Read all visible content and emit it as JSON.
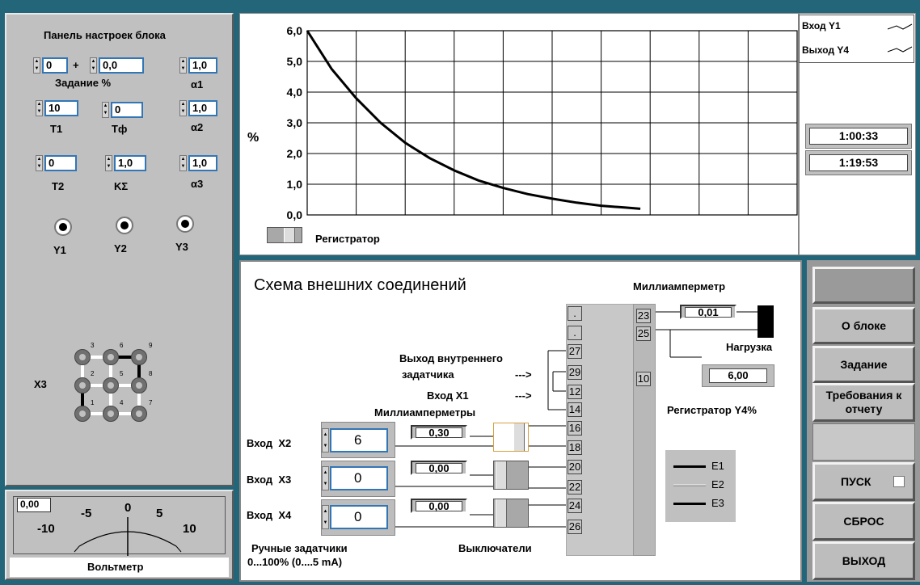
{
  "settings": {
    "title": "Панель настроек блока",
    "zadanie_a": "0",
    "plus": "+",
    "zadanie_b": "0,0",
    "zadanie_label": "Задание %",
    "alpha1_value": "1,0",
    "alpha1_label": "α1",
    "t1_value": "10",
    "t1_label": "T1",
    "tf_value": "0",
    "tf_label": "Tф",
    "alpha2_value": "1,0",
    "alpha2_label": "α2",
    "t2_value": "0",
    "t2_label": "T2",
    "ksigma_value": "1,0",
    "ksigma_label": "KΣ",
    "alpha3_value": "1,0",
    "alpha3_label": "α3",
    "radios": [
      "Y1",
      "Y2",
      "Y3"
    ],
    "x3_label": "X3",
    "node_numbers": [
      "3",
      "6",
      "9",
      "2",
      "5",
      "8",
      "1",
      "4",
      "7"
    ]
  },
  "voltmeter": {
    "value": "0,00",
    "title": "Вольтметр",
    "scale": [
      "-10",
      "-5",
      "0",
      "5",
      "10"
    ]
  },
  "chart_data": {
    "type": "line",
    "ylabel": "%",
    "yticks": [
      "6,0",
      "5,0",
      "4,0",
      "3,0",
      "2,0",
      "1,0",
      "0,0"
    ],
    "ylim": [
      0,
      6
    ],
    "xlim": [
      0,
      10
    ],
    "grid": true,
    "series": [
      {
        "values": [
          [
            0,
            6.0
          ],
          [
            0.5,
            4.75
          ],
          [
            1,
            3.8
          ],
          [
            1.5,
            3.0
          ],
          [
            2,
            2.35
          ],
          [
            2.5,
            1.85
          ],
          [
            3,
            1.45
          ],
          [
            3.5,
            1.12
          ],
          [
            4,
            0.88
          ],
          [
            4.5,
            0.68
          ],
          [
            5,
            0.53
          ],
          [
            5.5,
            0.4
          ],
          [
            6,
            0.3
          ],
          [
            6.5,
            0.24
          ],
          [
            6.8,
            0.2
          ]
        ]
      }
    ]
  },
  "registrator_label": "Регистратор",
  "legend": {
    "items": [
      "Вход Y1",
      "Выход Y4"
    ]
  },
  "times": [
    "1:00:33",
    "1:19:53"
  ],
  "scheme": {
    "title": "Схема внешних соединений",
    "milliammeter_label": "Миллиамперметр",
    "milliammeter_value": "0,01",
    "load_label": "Нагрузка",
    "reg_value": "6,00",
    "reg_label": "Регистратор Y4%",
    "inner_out_1": "Выход внутреннего",
    "inner_out_2": "задатчика",
    "arrow": "--->",
    "input_x1": "Вход  X1",
    "milliammeters_label": "Миллиамперметры",
    "rows": [
      {
        "label": "Вход  X2",
        "value": "6",
        "meter": "0,30"
      },
      {
        "label": "Вход  X3",
        "value": "0",
        "meter": "0,00"
      },
      {
        "label": "Вход  X4",
        "value": "0",
        "meter": "0,00"
      }
    ],
    "terminals_left": [
      "27",
      "29",
      "12",
      "14",
      "16",
      "18",
      "20",
      "22",
      "24",
      "26"
    ],
    "terminals_right": [
      "23",
      "25",
      "10"
    ],
    "dot": ".",
    "manual_1": "Ручные задатчики",
    "manual_2": "0...100% (0....5 mA)",
    "switches_label": "Выключатели",
    "e_legend": [
      "E1",
      "E2",
      "E3"
    ]
  },
  "buttons": {
    "blank": "",
    "about": "О блоке",
    "task": "Задание",
    "requirements": "Требования к отчету",
    "start": "ПУСК",
    "reset": "СБРОС",
    "exit": "ВЫХОД"
  }
}
